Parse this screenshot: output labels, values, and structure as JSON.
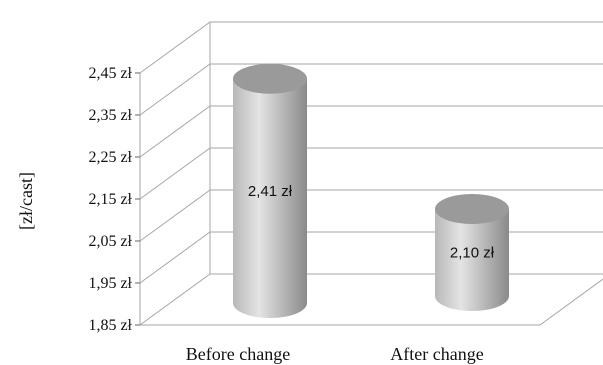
{
  "chart_data": {
    "type": "bar",
    "style": "3d-cylinder",
    "categories": [
      "Before change",
      "After change"
    ],
    "values": [
      2.41,
      2.1
    ],
    "data_labels": [
      "2,41 zł",
      "2,10 zł"
    ],
    "ylabel": "[zł/cast]",
    "ylim": [
      1.85,
      2.45
    ],
    "yticks": [
      1.85,
      1.95,
      2.05,
      2.15,
      2.25,
      2.35,
      2.45
    ],
    "ytick_labels": [
      "1,85 zł",
      "1,95 zł",
      "2,05 zł",
      "2,15 zł",
      "2,25 zł",
      "2,35 zł",
      "2,45 zł"
    ],
    "grid": true,
    "legend": "none",
    "colors": {
      "bar_light": "#e4e4e4",
      "bar_mid": "#b8b8b8",
      "bar_dark": "#8a8a8a",
      "grid": "#a6a6a6"
    }
  }
}
